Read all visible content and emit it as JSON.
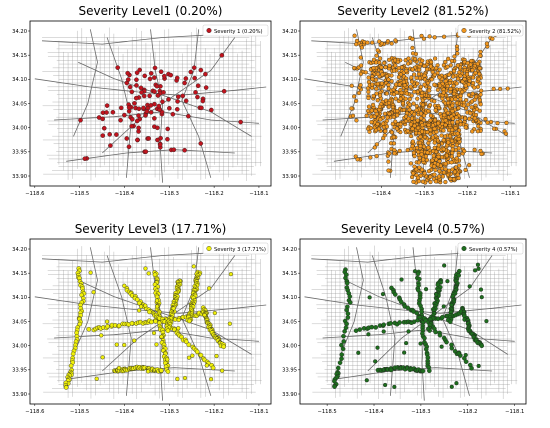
{
  "panels": [
    {
      "title": "Severity Level1 (0.20%)",
      "legend_label": "Severity 1 (0.20%)",
      "color": "#c0141e",
      "density": "sparse",
      "y_ticks": [
        "34.20",
        "34.15",
        "34.10",
        "34.05",
        "34.00",
        "33.95",
        "33.90"
      ],
      "x_ticks": [
        "−118.6",
        "−118.5",
        "−118.4",
        "−118.3",
        "−118.2",
        "−118.1"
      ]
    },
    {
      "title": "Severity Level2 (81.52%)",
      "legend_label": "Severity 2 (81.52%)",
      "color": "#f0961e",
      "density": "dense",
      "y_ticks": [
        "34.20",
        "34.15",
        "34.10",
        "34.05",
        "34.00",
        "33.95",
        "33.90"
      ],
      "x_ticks": [
        "−118.4",
        "−118.3",
        "−118.2",
        "−118.1"
      ]
    },
    {
      "title": "Severity Level3 (17.71%)",
      "legend_label": "Severity 3 (17.71%)",
      "color": "#f0f00a",
      "density": "roads",
      "y_ticks": [
        "34.20",
        "34.15",
        "34.10",
        "34.05",
        "34.00",
        "33.95",
        "33.90"
      ],
      "x_ticks": [
        "−118.6",
        "−118.5",
        "−118.4",
        "−118.3",
        "−118.2",
        "−118.1"
      ]
    },
    {
      "title": "Severity Level4 (0.57%)",
      "legend_label": "Severity 4 (0.57%)",
      "color": "#1e6e1e",
      "density": "roads-sparse",
      "y_ticks": [
        "34.20",
        "34.15",
        "34.10",
        "34.05",
        "34.00",
        "33.95",
        "33.90"
      ],
      "x_ticks": [
        "−118.5",
        "−118.4",
        "−118.3",
        "−118.2",
        "−118.1"
      ]
    }
  ]
}
